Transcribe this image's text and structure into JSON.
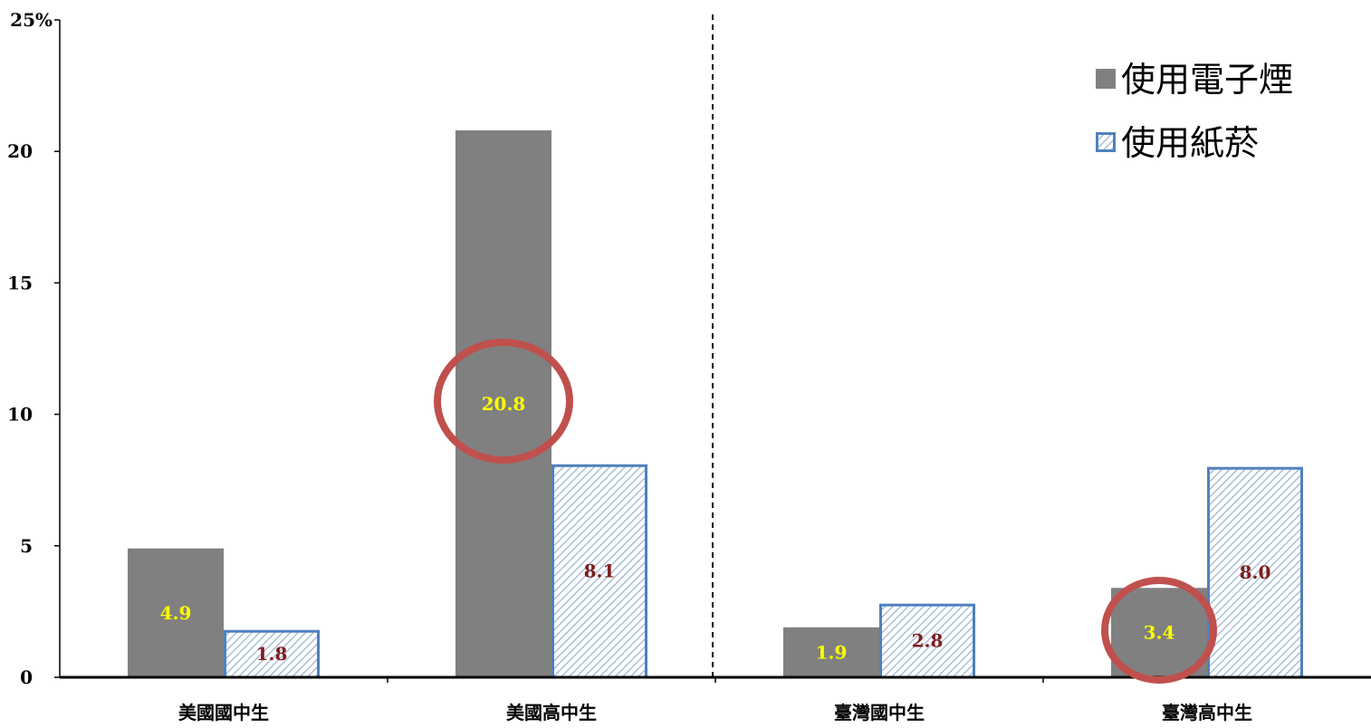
{
  "chart_data": {
    "type": "bar",
    "title": "",
    "xlabel": "",
    "ylabel": "",
    "ylim": [
      0,
      25
    ],
    "yticks": [
      "0",
      "5",
      "10",
      "15",
      "20",
      "25%"
    ],
    "categories": [
      "美國國中生",
      "美國高中生",
      "臺灣國中生",
      "臺灣高中生"
    ],
    "series": [
      {
        "name": "使用電子煙",
        "values": [
          4.9,
          20.8,
          1.9,
          3.4
        ],
        "labels": [
          "4.9",
          "20.8",
          "1.9",
          "3.4"
        ],
        "color": "#808080",
        "label_color": "#ffff00",
        "pattern": "solid"
      },
      {
        "name": "使用紙菸",
        "values": [
          1.8,
          8.1,
          2.8,
          8.0
        ],
        "labels": [
          "1.8",
          "8.1",
          "2.8",
          "8.0"
        ],
        "color": "#dbe5f1",
        "border_color": "#4f81bd",
        "label_color": "#7f1d1d",
        "pattern": "diagonal-hatch"
      }
    ],
    "highlighted": [
      {
        "series": "使用電子煙",
        "category": "美國高中生",
        "color": "#c0504d"
      },
      {
        "series": "使用電子煙",
        "category": "臺灣高中生",
        "color": "#c0504d"
      }
    ],
    "divider": "dashed line between 美國高中生 and 臺灣國中生",
    "legend_position": "top-right",
    "grid": false
  }
}
